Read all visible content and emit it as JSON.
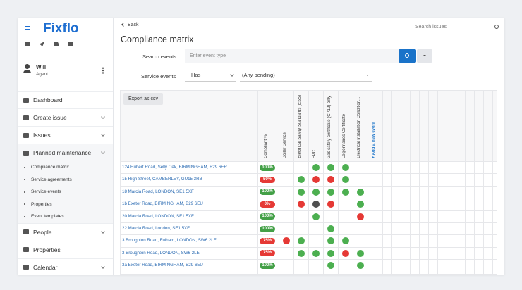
{
  "sidebar": {
    "logo": "Fixflo",
    "user": {
      "name": "Will",
      "role": "Agent"
    },
    "nav_top": [
      {
        "label": "Dashboard",
        "expandable": false
      },
      {
        "label": "Create issue",
        "expandable": true
      },
      {
        "label": "Issues",
        "expandable": true
      },
      {
        "label": "Planned maintenance",
        "expandable": true
      }
    ],
    "submenu": [
      "Compliance matrix",
      "Service agreements",
      "Service events",
      "Properties",
      "Event templates"
    ],
    "nav_bottom": [
      {
        "label": "People",
        "expandable": true
      },
      {
        "label": "Properties",
        "expandable": false
      },
      {
        "label": "Calendar",
        "expandable": true
      }
    ]
  },
  "header": {
    "back": "Back",
    "title": "Compliance matrix",
    "search_placeholder": "Search issues"
  },
  "filters": {
    "search_label": "Search events",
    "search_placeholder": "Enter event type",
    "service_label": "Service events",
    "condition": "Has",
    "selection": "(Any pending)"
  },
  "table": {
    "export": "Export as csv",
    "compliant_header": "Compliant %",
    "columns": [
      "Boiler Service",
      "Electrical Safety Standards (ESS)",
      "EPC",
      "Gas safety certificate (CP12) only",
      "Legionnaires Certificate",
      "Electrical Installation Condition..."
    ],
    "add_event": "+ Add a new event",
    "rows": [
      {
        "address": "124 Hubert Road, Selly Oak, BIRMINGHAM, B29 6ER",
        "compliant": "100%",
        "compliant_status": "good",
        "cells": [
          null,
          null,
          "green",
          "green",
          "green",
          null
        ]
      },
      {
        "address": "15 High Street, CAMBERLEY, GU15 3RB",
        "compliant": "50%",
        "compliant_status": "bad",
        "cells": [
          null,
          "green",
          "red",
          "red",
          "green",
          null
        ]
      },
      {
        "address": "18 Marcia Road, LONDON, SE1 5XF",
        "compliant": "100%",
        "compliant_status": "good",
        "cells": [
          null,
          "green",
          "green",
          "green",
          "green",
          "green"
        ]
      },
      {
        "address": "1b Exeter Road, BIRMINGHAM, B29 6EU",
        "compliant": "0%",
        "compliant_status": "bad",
        "cells": [
          null,
          "red",
          "gray",
          "red",
          null,
          "green"
        ]
      },
      {
        "address": "20 Marcia Road, LONDON, SE1 5XF",
        "compliant": "100%",
        "compliant_status": "good",
        "cells": [
          null,
          null,
          "green",
          null,
          null,
          "red"
        ]
      },
      {
        "address": "22 Marcia Road, London, SE1 5XF",
        "compliant": "100%",
        "compliant_status": "good",
        "cells": [
          null,
          null,
          null,
          "green",
          null,
          null
        ]
      },
      {
        "address": "3 Broughton Road, Fulham, LONDON, SW6 2LE",
        "compliant": "75%",
        "compliant_status": "bad",
        "cells": [
          "red",
          "green",
          null,
          "green",
          "green",
          null
        ]
      },
      {
        "address": "3 Broughton Road, LONDON, SW6 2LE",
        "compliant": "75%",
        "compliant_status": "bad",
        "cells": [
          null,
          "green",
          "green",
          "green",
          "red",
          "green"
        ]
      },
      {
        "address": "3a Exeter Road, BIRMINGHAM, B29 6EU",
        "compliant": "100%",
        "compliant_status": "good",
        "cells": [
          null,
          null,
          null,
          "green",
          null,
          "green"
        ]
      }
    ]
  }
}
